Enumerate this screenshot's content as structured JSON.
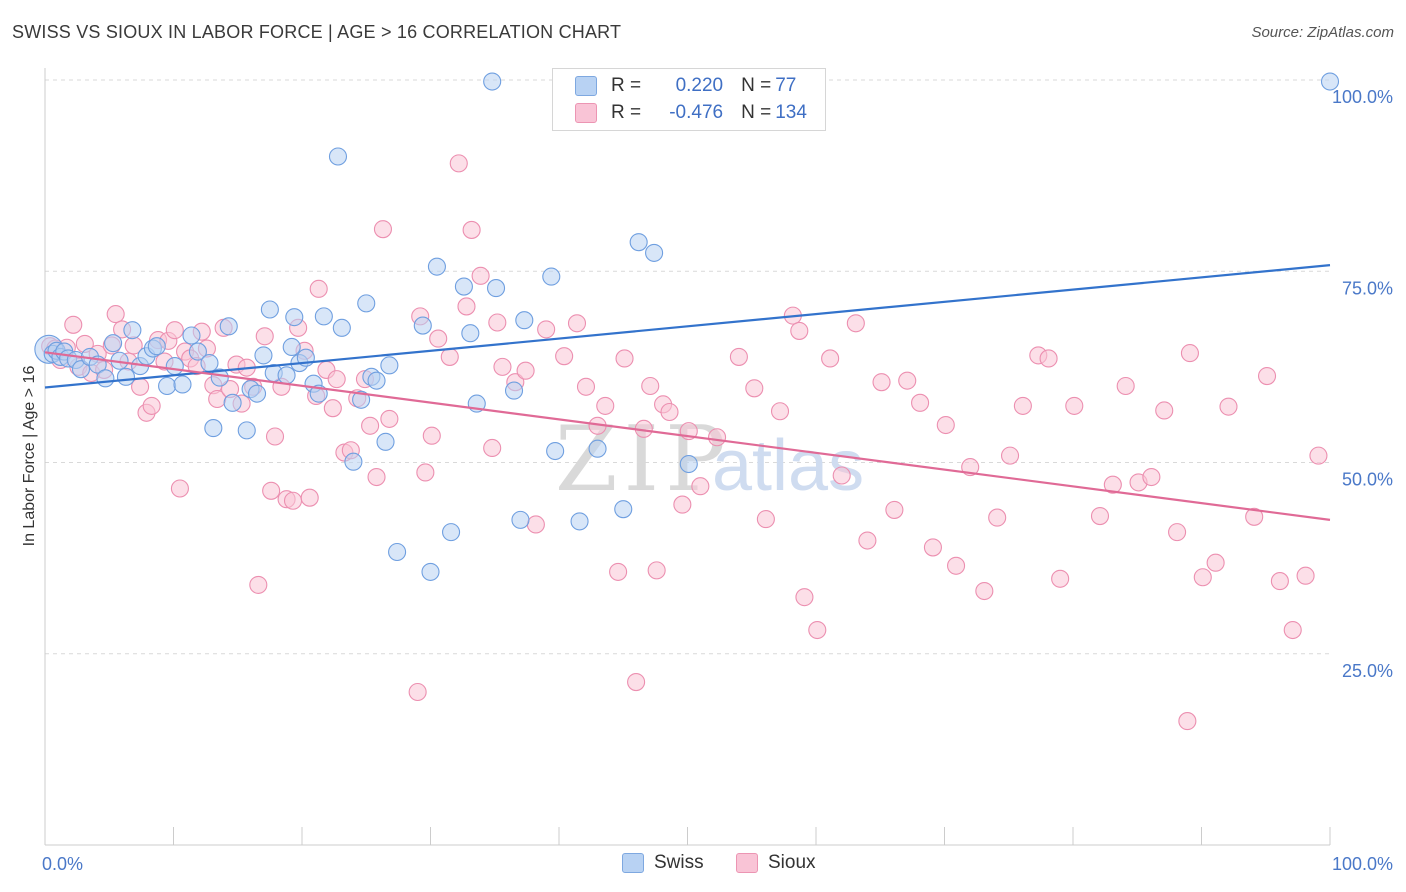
{
  "header": {
    "title": "SWISS VS SIOUX IN LABOR FORCE | AGE > 16 CORRELATION CHART",
    "source": "Source: ZipAtlas.com"
  },
  "watermark": {
    "zip": "ZIP",
    "atlas": "atlas"
  },
  "legend": {
    "swiss": {
      "r_label": "R =",
      "r_value": "0.220",
      "n_label": "N =",
      "n_value": "77"
    },
    "sioux": {
      "r_label": "R =",
      "r_value": "-0.476",
      "n_label": "N =",
      "n_value": "134"
    }
  },
  "bottom_legend": {
    "swiss": "Swiss",
    "sioux": "Sioux"
  },
  "colors": {
    "swiss_fill": "#b8d2f3",
    "swiss_stroke": "#6f9fe0",
    "swiss_line": "#3373cc",
    "sioux_fill": "#f9c4d6",
    "sioux_stroke": "#ec8fb0",
    "sioux_line": "#e06a96",
    "tick_label": "#4a78c8",
    "grid": "#d9d9d9"
  },
  "chart_data": {
    "type": "scatter",
    "title": "SWISS VS SIOUX IN LABOR FORCE | AGE > 16 CORRELATION CHART",
    "xlabel": "",
    "ylabel": "In Labor Force | Age > 16",
    "xlim": [
      0,
      100
    ],
    "ylim": [
      0,
      100
    ],
    "x_tick_labels": [
      "0.0%",
      "100.0%"
    ],
    "y_ticks": [
      25,
      50,
      75,
      100
    ],
    "y_tick_labels": [
      "25.0%",
      "50.0%",
      "75.0%",
      "100.0%"
    ],
    "grid": true,
    "legend_position": "top-center",
    "series": [
      {
        "name": "Swiss",
        "R": 0.22,
        "N": 77,
        "trend": {
          "x": [
            0,
            100
          ],
          "y": [
            59.8,
            75.8
          ]
        },
        "points": [
          [
            0.3,
            64.8
          ],
          [
            0.6,
            64.2
          ],
          [
            0.9,
            64.6
          ],
          [
            1.2,
            63.8
          ],
          [
            1.5,
            64.5
          ],
          [
            1.8,
            63.6
          ],
          [
            2.4,
            63.4
          ],
          [
            2.8,
            62.2
          ],
          [
            3.5,
            63.8
          ],
          [
            4.1,
            62.8
          ],
          [
            4.7,
            61.0
          ],
          [
            5.3,
            65.6
          ],
          [
            5.8,
            63.3
          ],
          [
            6.3,
            61.2
          ],
          [
            6.8,
            67.3
          ],
          [
            7.4,
            62.6
          ],
          [
            7.9,
            63.9
          ],
          [
            8.4,
            64.9
          ],
          [
            8.7,
            65.2
          ],
          [
            9.5,
            60.0
          ],
          [
            10.1,
            62.6
          ],
          [
            10.7,
            60.2
          ],
          [
            11.4,
            66.6
          ],
          [
            11.9,
            64.5
          ],
          [
            12.8,
            63.0
          ],
          [
            13.1,
            54.5
          ],
          [
            13.6,
            61.1
          ],
          [
            14.3,
            67.8
          ],
          [
            14.6,
            57.8
          ],
          [
            15.7,
            54.2
          ],
          [
            16.0,
            59.6
          ],
          [
            16.5,
            59.0
          ],
          [
            17.0,
            64.0
          ],
          [
            17.5,
            70.0
          ],
          [
            17.8,
            61.7
          ],
          [
            18.8,
            61.4
          ],
          [
            19.2,
            65.1
          ],
          [
            19.4,
            69.0
          ],
          [
            19.8,
            63.0
          ],
          [
            20.3,
            63.7
          ],
          [
            20.9,
            60.3
          ],
          [
            21.3,
            59.0
          ],
          [
            21.7,
            69.1
          ],
          [
            22.8,
            90.0
          ],
          [
            23.1,
            67.6
          ],
          [
            24.0,
            50.1
          ],
          [
            24.6,
            58.2
          ],
          [
            25.0,
            70.8
          ],
          [
            25.4,
            61.2
          ],
          [
            25.8,
            60.7
          ],
          [
            26.5,
            52.7
          ],
          [
            26.8,
            62.7
          ],
          [
            27.4,
            38.3
          ],
          [
            29.4,
            67.9
          ],
          [
            30.0,
            35.7
          ],
          [
            30.5,
            75.6
          ],
          [
            31.6,
            40.9
          ],
          [
            32.6,
            73.0
          ],
          [
            33.1,
            66.9
          ],
          [
            33.6,
            57.7
          ],
          [
            34.8,
            99.8
          ],
          [
            35.1,
            72.8
          ],
          [
            36.5,
            59.4
          ],
          [
            37.0,
            42.5
          ],
          [
            37.3,
            68.6
          ],
          [
            39.4,
            74.3
          ],
          [
            39.7,
            51.5
          ],
          [
            41.6,
            42.3
          ],
          [
            43.0,
            51.8
          ],
          [
            45.0,
            43.9
          ],
          [
            46.2,
            78.8
          ],
          [
            47.4,
            77.4
          ],
          [
            50.1,
            49.8
          ],
          [
            100,
            99.8
          ]
        ]
      },
      {
        "name": "Sioux",
        "R": -0.476,
        "N": 134,
        "trend": {
          "x": [
            0,
            100
          ],
          "y": [
            64.4,
            42.5
          ]
        },
        "points": [
          [
            0.4,
            65.2
          ],
          [
            0.8,
            64.9
          ],
          [
            1.2,
            63.4
          ],
          [
            1.7,
            65.0
          ],
          [
            2.2,
            68.0
          ],
          [
            2.6,
            62.5
          ],
          [
            3.1,
            65.5
          ],
          [
            3.6,
            61.7
          ],
          [
            4.1,
            64.2
          ],
          [
            4.6,
            62.1
          ],
          [
            5.2,
            65.3
          ],
          [
            5.5,
            69.4
          ],
          [
            6.0,
            67.4
          ],
          [
            6.5,
            63.2
          ],
          [
            6.9,
            65.3
          ],
          [
            7.4,
            59.9
          ],
          [
            7.9,
            56.5
          ],
          [
            8.3,
            57.4
          ],
          [
            8.8,
            66.0
          ],
          [
            9.3,
            63.2
          ],
          [
            9.6,
            65.9
          ],
          [
            10.1,
            67.3
          ],
          [
            10.5,
            46.6
          ],
          [
            10.9,
            64.5
          ],
          [
            11.3,
            63.6
          ],
          [
            11.8,
            62.6
          ],
          [
            12.2,
            67.1
          ],
          [
            12.6,
            64.9
          ],
          [
            13.1,
            60.1
          ],
          [
            13.4,
            58.3
          ],
          [
            13.9,
            67.6
          ],
          [
            14.4,
            59.6
          ],
          [
            14.9,
            62.8
          ],
          [
            15.3,
            57.7
          ],
          [
            15.7,
            62.4
          ],
          [
            16.2,
            59.9
          ],
          [
            16.6,
            34.0
          ],
          [
            17.1,
            66.5
          ],
          [
            17.6,
            46.3
          ],
          [
            17.9,
            53.4
          ],
          [
            18.4,
            59.9
          ],
          [
            18.8,
            45.2
          ],
          [
            19.3,
            45.0
          ],
          [
            19.7,
            67.6
          ],
          [
            20.2,
            64.6
          ],
          [
            20.6,
            45.4
          ],
          [
            21.1,
            58.7
          ],
          [
            21.3,
            72.7
          ],
          [
            21.9,
            62.1
          ],
          [
            22.4,
            57.1
          ],
          [
            22.7,
            60.9
          ],
          [
            23.3,
            51.3
          ],
          [
            23.8,
            51.6
          ],
          [
            24.3,
            58.4
          ],
          [
            24.9,
            60.9
          ],
          [
            25.3,
            54.8
          ],
          [
            25.8,
            48.1
          ],
          [
            26.3,
            80.5
          ],
          [
            26.8,
            55.7
          ],
          [
            29.0,
            20.0
          ],
          [
            29.2,
            69.1
          ],
          [
            29.6,
            48.7
          ],
          [
            30.1,
            53.5
          ],
          [
            30.6,
            66.2
          ],
          [
            31.5,
            63.8
          ],
          [
            32.2,
            89.1
          ],
          [
            32.8,
            70.4
          ],
          [
            33.2,
            80.4
          ],
          [
            33.9,
            74.4
          ],
          [
            34.8,
            51.9
          ],
          [
            35.2,
            68.3
          ],
          [
            35.6,
            62.5
          ],
          [
            36.6,
            60.5
          ],
          [
            37.4,
            62.0
          ],
          [
            38.2,
            41.9
          ],
          [
            39.0,
            67.4
          ],
          [
            40.4,
            63.9
          ],
          [
            41.4,
            68.2
          ],
          [
            42.1,
            59.9
          ],
          [
            43.0,
            54.8
          ],
          [
            43.6,
            57.4
          ],
          [
            44.6,
            35.7
          ],
          [
            45.1,
            63.6
          ],
          [
            46.0,
            21.3
          ],
          [
            46.6,
            54.4
          ],
          [
            47.1,
            60.0
          ],
          [
            47.6,
            35.9
          ],
          [
            48.1,
            57.6
          ],
          [
            48.6,
            56.6
          ],
          [
            49.6,
            44.5
          ],
          [
            50.1,
            54.1
          ],
          [
            51.0,
            46.9
          ],
          [
            52.3,
            53.3
          ],
          [
            54.0,
            63.8
          ],
          [
            55.2,
            59.7
          ],
          [
            56.1,
            42.6
          ],
          [
            57.2,
            56.7
          ],
          [
            58.2,
            69.2
          ],
          [
            58.7,
            67.2
          ],
          [
            59.1,
            32.4
          ],
          [
            60.1,
            28.1
          ],
          [
            61.1,
            63.6
          ],
          [
            62.0,
            48.3
          ],
          [
            63.1,
            68.2
          ],
          [
            64.0,
            39.8
          ],
          [
            65.1,
            60.5
          ],
          [
            66.1,
            43.8
          ],
          [
            67.1,
            60.7
          ],
          [
            68.1,
            57.8
          ],
          [
            69.1,
            38.9
          ],
          [
            70.1,
            54.9
          ],
          [
            70.9,
            36.5
          ],
          [
            72.0,
            49.4
          ],
          [
            73.1,
            33.2
          ],
          [
            74.1,
            42.8
          ],
          [
            75.1,
            50.9
          ],
          [
            76.1,
            57.4
          ],
          [
            77.3,
            64.0
          ],
          [
            78.1,
            63.6
          ],
          [
            79.0,
            34.8
          ],
          [
            80.1,
            57.4
          ],
          [
            82.1,
            43.0
          ],
          [
            83.1,
            47.1
          ],
          [
            84.1,
            60.0
          ],
          [
            85.1,
            47.4
          ],
          [
            86.1,
            48.1
          ],
          [
            87.1,
            56.8
          ],
          [
            88.1,
            40.9
          ],
          [
            88.9,
            16.2
          ],
          [
            89.1,
            64.3
          ],
          [
            90.1,
            35.0
          ],
          [
            91.1,
            36.9
          ],
          [
            92.1,
            57.3
          ],
          [
            94.1,
            42.9
          ],
          [
            95.1,
            61.3
          ],
          [
            96.1,
            34.5
          ],
          [
            97.1,
            28.1
          ],
          [
            98.1,
            35.2
          ],
          [
            99.1,
            50.9
          ]
        ]
      }
    ]
  }
}
